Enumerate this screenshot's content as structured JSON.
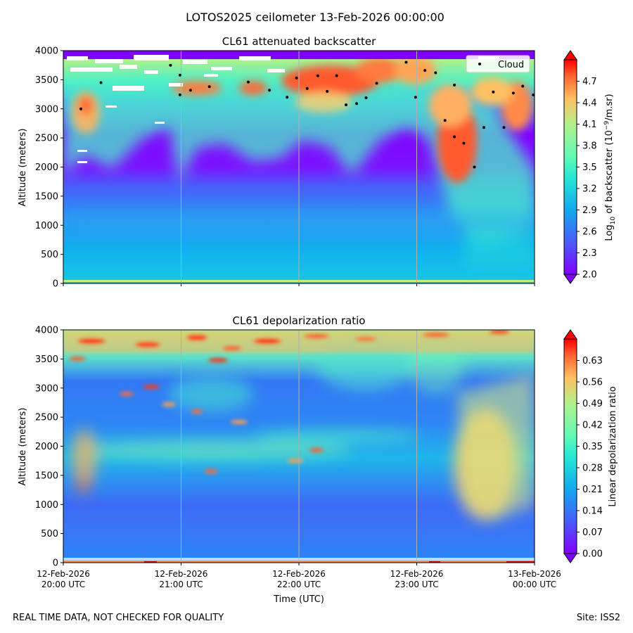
{
  "figure": {
    "title": "LOTOS2025 ceilometer 13-Feb-2026 00:00:00",
    "footer_left": "REAL TIME DATA, NOT CHECKED FOR QUALITY",
    "footer_right": "Site: ISS2"
  },
  "chart_data": [
    {
      "type": "heatmap",
      "title": "CL61 attenuated backscatter",
      "xlabel": "",
      "ylabel": "Altitude (meters)",
      "ylim": [
        0,
        4000
      ],
      "yticks": [
        0,
        500,
        1000,
        1500,
        2000,
        2500,
        3000,
        3500,
        4000
      ],
      "xlim_hours": [
        20,
        24
      ],
      "gridlines_hours": [
        21,
        22,
        23
      ],
      "colorbar": {
        "label_prefix": "Log",
        "label_sub": "10",
        "label_mid": " of backscatter (10",
        "label_sup": "−9",
        "label_suffix": "/m.sr)",
        "range": [
          2.0,
          5.0
        ],
        "ticks": [
          "2.0",
          "2.3",
          "2.6",
          "2.9",
          "3.2",
          "3.5",
          "3.8",
          "4.1",
          "4.4",
          "4.7"
        ]
      },
      "legend": {
        "label": "Cloud",
        "position": "top-right"
      },
      "cloud_points": [
        {
          "t": 20.15,
          "alt": 3000
        },
        {
          "t": 20.32,
          "alt": 3450
        },
        {
          "t": 20.91,
          "alt": 3750
        },
        {
          "t": 20.99,
          "alt": 3580
        },
        {
          "t": 20.99,
          "alt": 3240
        },
        {
          "t": 21.08,
          "alt": 3320
        },
        {
          "t": 21.24,
          "alt": 3380
        },
        {
          "t": 21.57,
          "alt": 3460
        },
        {
          "t": 21.75,
          "alt": 3320
        },
        {
          "t": 21.9,
          "alt": 3200
        },
        {
          "t": 21.98,
          "alt": 3530
        },
        {
          "t": 22.07,
          "alt": 3350
        },
        {
          "t": 22.16,
          "alt": 3570
        },
        {
          "t": 22.24,
          "alt": 3300
        },
        {
          "t": 22.32,
          "alt": 3570
        },
        {
          "t": 22.4,
          "alt": 3070
        },
        {
          "t": 22.49,
          "alt": 3090
        },
        {
          "t": 22.57,
          "alt": 3190
        },
        {
          "t": 22.66,
          "alt": 3440
        },
        {
          "t": 22.91,
          "alt": 3800
        },
        {
          "t": 22.99,
          "alt": 3200
        },
        {
          "t": 23.07,
          "alt": 3660
        },
        {
          "t": 23.16,
          "alt": 3620
        },
        {
          "t": 23.24,
          "alt": 2800
        },
        {
          "t": 23.32,
          "alt": 2520
        },
        {
          "t": 23.32,
          "alt": 3410
        },
        {
          "t": 23.4,
          "alt": 2410
        },
        {
          "t": 23.49,
          "alt": 2000
        },
        {
          "t": 23.57,
          "alt": 2680
        },
        {
          "t": 23.65,
          "alt": 3290
        },
        {
          "t": 23.74,
          "alt": 2680
        },
        {
          "t": 23.82,
          "alt": 3270
        },
        {
          "t": 23.9,
          "alt": 3390
        },
        {
          "t": 23.99,
          "alt": 3240
        }
      ]
    },
    {
      "type": "heatmap",
      "title": "CL61 depolarization ratio",
      "xlabel": "Time (UTC)",
      "ylabel": "Altitude (meters)",
      "ylim": [
        0,
        4000
      ],
      "yticks": [
        0,
        500,
        1000,
        1500,
        2000,
        2500,
        3000,
        3500,
        4000
      ],
      "xlim_hours": [
        20,
        24
      ],
      "gridlines_hours": [
        21,
        22,
        23
      ],
      "xticks": [
        {
          "hour": 20,
          "line1": "12-Feb-2026",
          "line2": "20:00 UTC"
        },
        {
          "hour": 21,
          "line1": "12-Feb-2026",
          "line2": "21:00 UTC"
        },
        {
          "hour": 22,
          "line1": "12-Feb-2026",
          "line2": "22:00 UTC"
        },
        {
          "hour": 23,
          "line1": "12-Feb-2026",
          "line2": "23:00 UTC"
        },
        {
          "hour": 24,
          "line1": "13-Feb-2026",
          "line2": "00:00 UTC"
        }
      ],
      "colorbar": {
        "label": "Linear depolarization ratio",
        "range": [
          0.0,
          0.7
        ],
        "ticks": [
          "0.00",
          "0.07",
          "0.14",
          "0.21",
          "0.28",
          "0.35",
          "0.42",
          "0.49",
          "0.56",
          "0.63"
        ]
      }
    }
  ]
}
